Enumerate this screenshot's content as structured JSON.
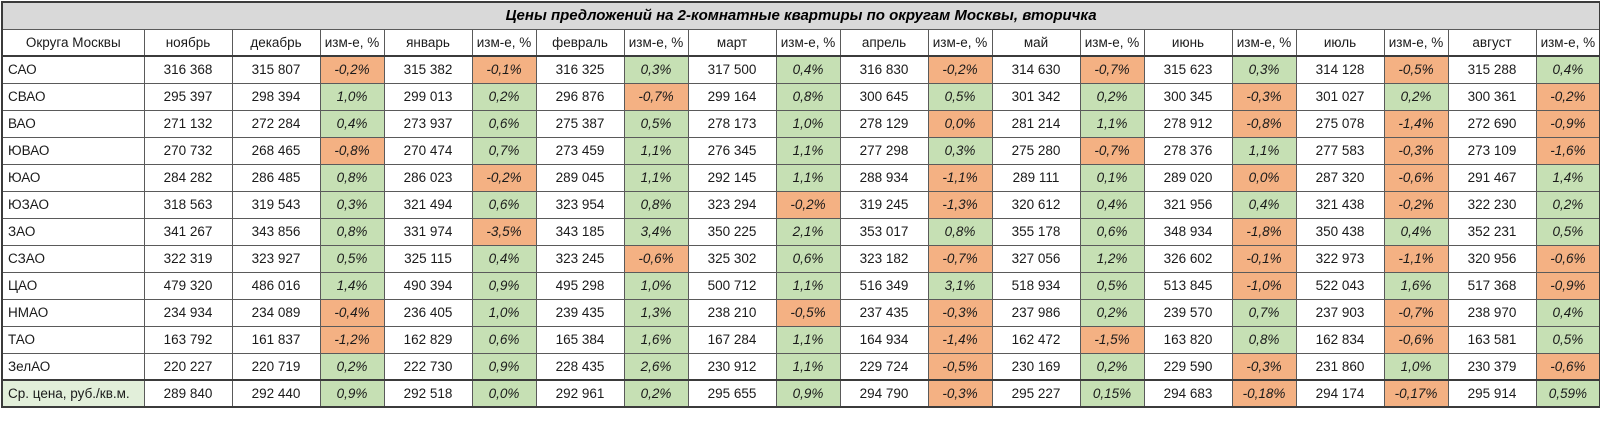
{
  "title": "Цены предложений на 2-комнатные квартиры по округам Москвы, вторичка",
  "colors": {
    "positive_change_bg": "#c6e0b4",
    "negative_change_bg": "#f4b183",
    "average_row_label_bg": "#e2efda",
    "title_bar_bg": "#d9d9d9"
  },
  "table": {
    "header": [
      "Округа Москвы",
      "ноябрь",
      "декабрь",
      "изм-е, %",
      "январь",
      "изм-е, %",
      "февраль",
      "изм-е, %",
      "март",
      "изм-е, %",
      "апрель",
      "изм-е, %",
      "май",
      "изм-е, %",
      "июнь",
      "изм-е, %",
      "июль",
      "изм-е, %",
      "август",
      "изм-е, %"
    ],
    "rows": [
      {
        "label": "САО",
        "avg": false,
        "values": [
          "316 368",
          "315 807",
          "-0,2%",
          "315 382",
          "-0,1%",
          "316 325",
          "0,3%",
          "317 500",
          "0,4%",
          "316 830",
          "-0,2%",
          "314 630",
          "-0,7%",
          "315 623",
          "0,3%",
          "314 128",
          "-0,5%",
          "315 288",
          "0,4%"
        ],
        "flags": [
          "",
          "",
          "neg",
          "",
          "neg",
          "",
          "pos",
          "",
          "pos",
          "",
          "neg",
          "",
          "neg",
          "",
          "pos",
          "",
          "neg",
          "",
          "pos"
        ]
      },
      {
        "label": "СВАО",
        "avg": false,
        "values": [
          "295 397",
          "298 394",
          "1,0%",
          "299 013",
          "0,2%",
          "296 876",
          "-0,7%",
          "299 164",
          "0,8%",
          "300 645",
          "0,5%",
          "301 342",
          "0,2%",
          "300 345",
          "-0,3%",
          "301 027",
          "0,2%",
          "300 361",
          "-0,2%"
        ],
        "flags": [
          "",
          "",
          "pos",
          "",
          "pos",
          "",
          "neg",
          "",
          "pos",
          "",
          "pos",
          "",
          "pos",
          "",
          "neg",
          "",
          "pos",
          "",
          "neg"
        ]
      },
      {
        "label": "ВАО",
        "avg": false,
        "values": [
          "271 132",
          "272 284",
          "0,4%",
          "273 937",
          "0,6%",
          "275 387",
          "0,5%",
          "278 173",
          "1,0%",
          "278 129",
          "0,0%",
          "281 214",
          "1,1%",
          "278 912",
          "-0,8%",
          "275 078",
          "-1,4%",
          "272 690",
          "-0,9%"
        ],
        "flags": [
          "",
          "",
          "pos",
          "",
          "pos",
          "",
          "pos",
          "",
          "pos",
          "",
          "neg",
          "",
          "pos",
          "",
          "neg",
          "",
          "neg",
          "",
          "neg"
        ]
      },
      {
        "label": "ЮВАО",
        "avg": false,
        "values": [
          "270 732",
          "268 465",
          "-0,8%",
          "270 474",
          "0,7%",
          "273 459",
          "1,1%",
          "276 345",
          "1,1%",
          "277 298",
          "0,3%",
          "275 280",
          "-0,7%",
          "278 376",
          "1,1%",
          "277 583",
          "-0,3%",
          "273 109",
          "-1,6%"
        ],
        "flags": [
          "",
          "",
          "neg",
          "",
          "pos",
          "",
          "pos",
          "",
          "pos",
          "",
          "pos",
          "",
          "neg",
          "",
          "pos",
          "",
          "neg",
          "",
          "neg"
        ]
      },
      {
        "label": "ЮАО",
        "avg": false,
        "values": [
          "284 282",
          "286 485",
          "0,8%",
          "286 023",
          "-0,2%",
          "289 045",
          "1,1%",
          "292 145",
          "1,1%",
          "288 934",
          "-1,1%",
          "289 111",
          "0,1%",
          "289 020",
          "0,0%",
          "287 320",
          "-0,6%",
          "291 467",
          "1,4%"
        ],
        "flags": [
          "",
          "",
          "pos",
          "",
          "neg",
          "",
          "pos",
          "",
          "pos",
          "",
          "neg",
          "",
          "pos",
          "",
          "neg",
          "",
          "neg",
          "",
          "pos"
        ]
      },
      {
        "label": "ЮЗАО",
        "avg": false,
        "values": [
          "318 563",
          "319 543",
          "0,3%",
          "321 494",
          "0,6%",
          "323 954",
          "0,8%",
          "323 294",
          "-0,2%",
          "319 245",
          "-1,3%",
          "320 612",
          "0,4%",
          "321 956",
          "0,4%",
          "321 438",
          "-0,2%",
          "322 230",
          "0,2%"
        ],
        "flags": [
          "",
          "",
          "pos",
          "",
          "pos",
          "",
          "pos",
          "",
          "neg",
          "",
          "neg",
          "",
          "pos",
          "",
          "pos",
          "",
          "neg",
          "",
          "pos"
        ]
      },
      {
        "label": "ЗАО",
        "avg": false,
        "values": [
          "341 267",
          "343 856",
          "0,8%",
          "331 974",
          "-3,5%",
          "343 185",
          "3,4%",
          "350 225",
          "2,1%",
          "353 017",
          "0,8%",
          "355 178",
          "0,6%",
          "348 934",
          "-1,8%",
          "350 438",
          "0,4%",
          "352 231",
          "0,5%"
        ],
        "flags": [
          "",
          "",
          "pos",
          "",
          "neg",
          "",
          "pos",
          "",
          "pos",
          "",
          "pos",
          "",
          "pos",
          "",
          "neg",
          "",
          "pos",
          "",
          "pos"
        ]
      },
      {
        "label": "СЗАО",
        "avg": false,
        "values": [
          "322 319",
          "323 927",
          "0,5%",
          "325 115",
          "0,4%",
          "323 245",
          "-0,6%",
          "325 302",
          "0,6%",
          "323 182",
          "-0,7%",
          "327 056",
          "1,2%",
          "326 602",
          "-0,1%",
          "322 973",
          "-1,1%",
          "320 956",
          "-0,6%"
        ],
        "flags": [
          "",
          "",
          "pos",
          "",
          "pos",
          "",
          "neg",
          "",
          "pos",
          "",
          "neg",
          "",
          "pos",
          "",
          "neg",
          "",
          "neg",
          "",
          "neg"
        ]
      },
      {
        "label": "ЦАО",
        "avg": false,
        "values": [
          "479 320",
          "486 016",
          "1,4%",
          "490 394",
          "0,9%",
          "495 298",
          "1,0%",
          "500 712",
          "1,1%",
          "516 349",
          "3,1%",
          "518 934",
          "0,5%",
          "513 845",
          "-1,0%",
          "522 043",
          "1,6%",
          "517 368",
          "-0,9%"
        ],
        "flags": [
          "",
          "",
          "pos",
          "",
          "pos",
          "",
          "pos",
          "",
          "pos",
          "",
          "pos",
          "",
          "pos",
          "",
          "neg",
          "",
          "pos",
          "",
          "neg"
        ]
      },
      {
        "label": "НМАО",
        "avg": false,
        "values": [
          "234 934",
          "234 089",
          "-0,4%",
          "236 405",
          "1,0%",
          "239 435",
          "1,3%",
          "238 210",
          "-0,5%",
          "237 435",
          "-0,3%",
          "237 986",
          "0,2%",
          "239 570",
          "0,7%",
          "237 903",
          "-0,7%",
          "238 970",
          "0,4%"
        ],
        "flags": [
          "",
          "",
          "neg",
          "",
          "pos",
          "",
          "pos",
          "",
          "neg",
          "",
          "neg",
          "",
          "pos",
          "",
          "pos",
          "",
          "neg",
          "",
          "pos"
        ]
      },
      {
        "label": "ТАО",
        "avg": false,
        "values": [
          "163 792",
          "161 837",
          "-1,2%",
          "162 829",
          "0,6%",
          "165 384",
          "1,6%",
          "167 284",
          "1,1%",
          "164 934",
          "-1,4%",
          "162 472",
          "-1,5%",
          "163 820",
          "0,8%",
          "162 834",
          "-0,6%",
          "163 581",
          "0,5%"
        ],
        "flags": [
          "",
          "",
          "neg",
          "",
          "pos",
          "",
          "pos",
          "",
          "pos",
          "",
          "neg",
          "",
          "neg",
          "",
          "pos",
          "",
          "neg",
          "",
          "pos"
        ]
      },
      {
        "label": "ЗелАО",
        "avg": false,
        "values": [
          "220 227",
          "220 719",
          "0,2%",
          "222 730",
          "0,9%",
          "228 435",
          "2,6%",
          "230 912",
          "1,1%",
          "229 724",
          "-0,5%",
          "230 169",
          "0,2%",
          "229 590",
          "-0,3%",
          "231 860",
          "1,0%",
          "230 379",
          "-0,6%"
        ],
        "flags": [
          "",
          "",
          "pos",
          "",
          "pos",
          "",
          "pos",
          "",
          "pos",
          "",
          "neg",
          "",
          "pos",
          "",
          "neg",
          "",
          "pos",
          "",
          "neg"
        ]
      },
      {
        "label": "Ср. цена, руб./кв.м.",
        "avg": true,
        "values": [
          "289 840",
          "292 440",
          "0,9%",
          "292 518",
          "0,0%",
          "292 961",
          "0,2%",
          "295 655",
          "0,9%",
          "294 790",
          "-0,3%",
          "295 227",
          "0,15%",
          "294 683",
          "-0,18%",
          "294 174",
          "-0,17%",
          "295 914",
          "0,59%"
        ],
        "flags": [
          "",
          "",
          "pos",
          "",
          "pos",
          "",
          "pos",
          "",
          "pos",
          "",
          "neg",
          "",
          "pos",
          "",
          "neg",
          "",
          "neg",
          "",
          "pos"
        ]
      }
    ]
  }
}
